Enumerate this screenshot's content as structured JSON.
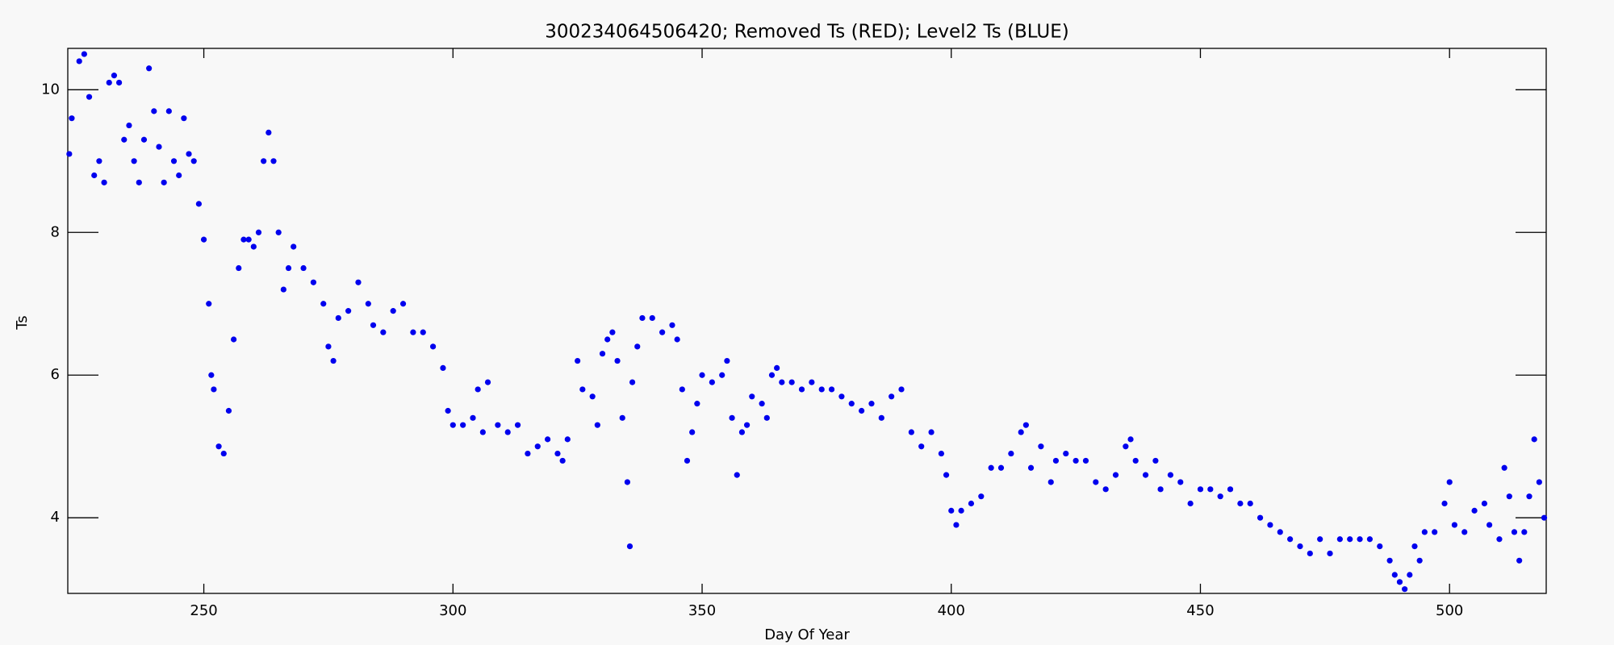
{
  "chart_data": {
    "type": "scatter",
    "title": "300234064506420; Removed Ts (RED); Level2 Ts (BLUE)",
    "x_label": "Day Of Year",
    "y_label": "Ts",
    "color": "#0000ee",
    "xlim": [
      222.7,
      519.4
    ],
    "xticks": [
      250,
      300,
      350,
      400,
      450,
      500
    ],
    "ylim": [
      2.94,
      10.58
    ],
    "yticks": [
      4,
      6,
      8,
      10
    ],
    "x": [
      223,
      223.5,
      225,
      226,
      227,
      228,
      229,
      230,
      231,
      232,
      233,
      234,
      235,
      236,
      237,
      238,
      239,
      240,
      241,
      242,
      243,
      244,
      245,
      246,
      247,
      248,
      249,
      250,
      251,
      251.5,
      252,
      253,
      254,
      255,
      256,
      257,
      258,
      259,
      260,
      261,
      262,
      263,
      264,
      265,
      266,
      267,
      268,
      270,
      272,
      274,
      275,
      276,
      277,
      279,
      281,
      283,
      284,
      286,
      288,
      290,
      292,
      294,
      296,
      298,
      299,
      300,
      302,
      304,
      305,
      306,
      307,
      309,
      311,
      313,
      315,
      317,
      319,
      321,
      322,
      323,
      325,
      326,
      328,
      329,
      330,
      331,
      332,
      333,
      334,
      335,
      335.5,
      336,
      337,
      338,
      340,
      342,
      344,
      345,
      346,
      347,
      348,
      349,
      350,
      352,
      354,
      355,
      356,
      357,
      358,
      359,
      360,
      362,
      363,
      364,
      365,
      366,
      368,
      370,
      372,
      374,
      376,
      378,
      380,
      382,
      384,
      386,
      388,
      390,
      392,
      394,
      396,
      398,
      399,
      400,
      401,
      402,
      404,
      406,
      408,
      410,
      412,
      414,
      415,
      416,
      418,
      420,
      421,
      423,
      425,
      427,
      429,
      431,
      433,
      435,
      436,
      437,
      439,
      441,
      442,
      444,
      446,
      448,
      450,
      452,
      454,
      456,
      458,
      460,
      462,
      464,
      466,
      468,
      470,
      472,
      474,
      476,
      478,
      480,
      482,
      484,
      486,
      488,
      489,
      490,
      491,
      492,
      493,
      494,
      495,
      497,
      499,
      500,
      501,
      503,
      505,
      507,
      508,
      510,
      511,
      512,
      513,
      514,
      515,
      516,
      517,
      518,
      519
    ],
    "values": [
      9.1,
      9.6,
      10.4,
      10.5,
      9.9,
      8.8,
      9.0,
      8.7,
      10.1,
      10.2,
      10.1,
      9.3,
      9.5,
      9.0,
      8.7,
      9.3,
      10.3,
      9.7,
      9.2,
      8.7,
      9.7,
      9.0,
      8.8,
      9.6,
      9.1,
      9.0,
      8.4,
      7.9,
      7.0,
      6.0,
      5.8,
      5.0,
      4.9,
      5.5,
      6.5,
      7.5,
      7.9,
      7.9,
      7.8,
      8.0,
      9.0,
      9.4,
      9.0,
      8.0,
      7.2,
      7.5,
      7.8,
      7.5,
      7.3,
      7.0,
      6.4,
      6.2,
      6.8,
      6.9,
      7.3,
      7.0,
      6.7,
      6.6,
      6.9,
      7.0,
      6.6,
      6.6,
      6.4,
      6.1,
      5.5,
      5.3,
      5.3,
      5.4,
      5.8,
      5.2,
      5.9,
      5.3,
      5.2,
      5.3,
      4.9,
      5.0,
      5.1,
      4.9,
      4.8,
      5.1,
      6.2,
      5.8,
      5.7,
      5.3,
      6.3,
      6.5,
      6.6,
      6.2,
      5.4,
      4.5,
      3.6,
      5.9,
      6.4,
      6.8,
      6.8,
      6.6,
      6.7,
      6.5,
      5.8,
      4.8,
      5.2,
      5.6,
      6.0,
      5.9,
      6.0,
      6.2,
      5.4,
      4.6,
      5.2,
      5.3,
      5.7,
      5.6,
      5.4,
      6.0,
      6.1,
      5.9,
      5.9,
      5.8,
      5.9,
      5.8,
      5.8,
      5.7,
      5.6,
      5.5,
      5.6,
      5.4,
      5.7,
      5.8,
      5.2,
      5.0,
      5.2,
      4.9,
      4.6,
      4.1,
      3.9,
      4.1,
      4.2,
      4.3,
      4.7,
      4.7,
      4.9,
      5.2,
      5.3,
      4.7,
      5.0,
      4.5,
      4.8,
      4.9,
      4.8,
      4.8,
      4.5,
      4.4,
      4.6,
      5.0,
      5.1,
      4.8,
      4.6,
      4.8,
      4.4,
      4.6,
      4.5,
      4.2,
      4.4,
      4.4,
      4.3,
      4.4,
      4.2,
      4.2,
      4.0,
      3.9,
      3.8,
      3.7,
      3.6,
      3.5,
      3.7,
      3.5,
      3.7,
      3.7,
      3.7,
      3.7,
      3.6,
      3.4,
      3.2,
      3.1,
      3.0,
      3.2,
      3.6,
      3.4,
      3.8,
      3.8,
      4.2,
      4.5,
      3.9,
      3.8,
      4.1,
      4.2,
      3.9,
      3.7,
      4.7,
      4.3,
      3.8,
      3.4,
      3.8,
      4.3,
      5.1,
      4.5,
      4.0
    ]
  }
}
